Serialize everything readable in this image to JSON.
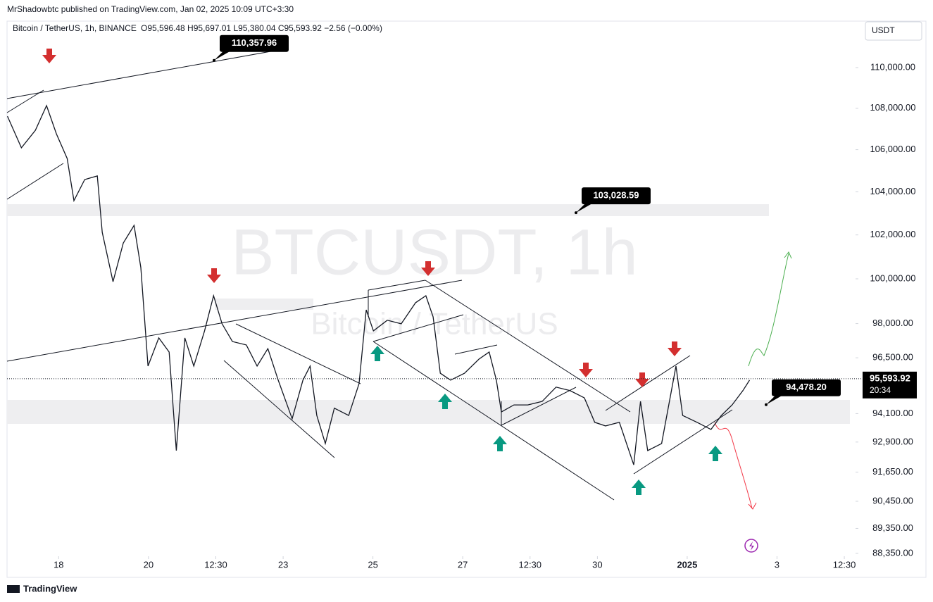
{
  "header": {
    "publisher": "MrShadowbtc published on TradingView.com, Jan 02, 2025 10:09 UTC+3:30",
    "legend": "Bitcoin / TetherUS, 1h, BINANCE",
    "ohlc": "O95,596.48 H95,697.01 L95,380.04 C95,593.92 −2.56 (−0.00%)",
    "currency": "USDT"
  },
  "chart_data": {
    "type": "line",
    "log_scale": true,
    "color": "#131722",
    "watermark": "BTCUSDT, 1h",
    "watermark_sub": "Bitcoin / TetherUS",
    "x": [
      -1.14,
      -0.83,
      -0.52,
      -0.27,
      -0.05,
      0.19,
      0.34,
      0.58,
      0.86,
      0.97,
      1.21,
      1.44,
      1.68,
      1.83,
      1.99,
      2.23,
      2.46,
      2.62,
      2.81,
      3.01,
      3.25,
      3.45,
      3.64,
      3.87,
      4.18,
      4.42,
      4.66,
      4.89,
      5.2,
      5.44,
      5.6,
      5.75,
      5.94,
      6.14,
      6.46,
      6.69,
      6.85,
      7.01,
      7.32,
      7.63,
      7.95,
      8.18,
      8.34,
      8.5,
      8.73,
      9.04,
      9.36,
      9.59,
      9.75,
      9.86,
      10.14,
      10.45,
      10.77,
      11.08,
      11.39,
      11.71,
      11.94,
      12.18,
      12.49,
      12.81,
      12.96,
      13.12,
      13.43,
      13.75,
      13.9,
      14.22,
      14.53,
      14.76,
      15,
      15.24,
      15.39
    ],
    "values": [
      107610,
      106090,
      106930,
      108130,
      106760,
      105580,
      103590,
      104580,
      104750,
      102120,
      99870,
      101630,
      102440,
      100510,
      96140,
      97370,
      96750,
      92540,
      97370,
      96140,
      97680,
      99240,
      97990,
      97210,
      97060,
      96140,
      96900,
      95530,
      93880,
      95530,
      96140,
      94020,
      92840,
      94330,
      94020,
      95380,
      98610,
      97680,
      98150,
      97990,
      98930,
      99240,
      98300,
      95830,
      95530,
      95830,
      96440,
      96750,
      95530,
      94170,
      94470,
      94470,
      94620,
      95230,
      95080,
      94770,
      93730,
      93580,
      93730,
      91950,
      94620,
      92540,
      92840,
      96140,
      94020,
      93730,
      93430,
      94020,
      94470,
      95080,
      95530
    ],
    "xlim": [
      -1.15,
      17.75
    ],
    "xticks": [
      {
        "value": 0,
        "label": "18"
      },
      {
        "value": 2,
        "label": "20"
      },
      {
        "value": 3.5,
        "label": "12:30"
      },
      {
        "value": 5,
        "label": "23"
      },
      {
        "value": 7,
        "label": "25"
      },
      {
        "value": 9,
        "label": "27"
      },
      {
        "value": 10.5,
        "label": "12:30"
      },
      {
        "value": 12,
        "label": "30"
      },
      {
        "value": 14,
        "label": "2025"
      },
      {
        "value": 16,
        "label": "3"
      },
      {
        "value": 17.5,
        "label": "12:30"
      }
    ],
    "ylim": [
      88235,
      112330
    ],
    "yticks": [
      {
        "value": 110000,
        "label": "110,000.00"
      },
      {
        "value": 108000,
        "label": "108,000.00"
      },
      {
        "value": 106000,
        "label": "106,000.00"
      },
      {
        "value": 104000,
        "label": "104,000.00"
      },
      {
        "value": 102000,
        "label": "102,000.00"
      },
      {
        "value": 100000,
        "label": "100,000.00"
      },
      {
        "value": 98000,
        "label": "98,000.00"
      },
      {
        "value": 96500,
        "label": "96,500.00"
      },
      {
        "value": 94100,
        "label": "94,100.00"
      },
      {
        "value": 92900,
        "label": "92,900.00"
      },
      {
        "value": 91650,
        "label": "91,650.00"
      },
      {
        "value": 90450,
        "label": "90,450.00"
      },
      {
        "value": 89350,
        "label": "89,350.00"
      },
      {
        "value": 88350,
        "label": "88,350.00"
      }
    ],
    "annotations": [
      {
        "value": 110357.96,
        "label": "110,357.96"
      },
      {
        "value": 103028.59,
        "label": "103,028.59"
      },
      {
        "value": 94478.2,
        "label": "94,478.20"
      }
    ],
    "last_price": {
      "value": 95593.92,
      "label": "95,593.92",
      "countdown": "20:34"
    }
  },
  "footer": "TradingView"
}
